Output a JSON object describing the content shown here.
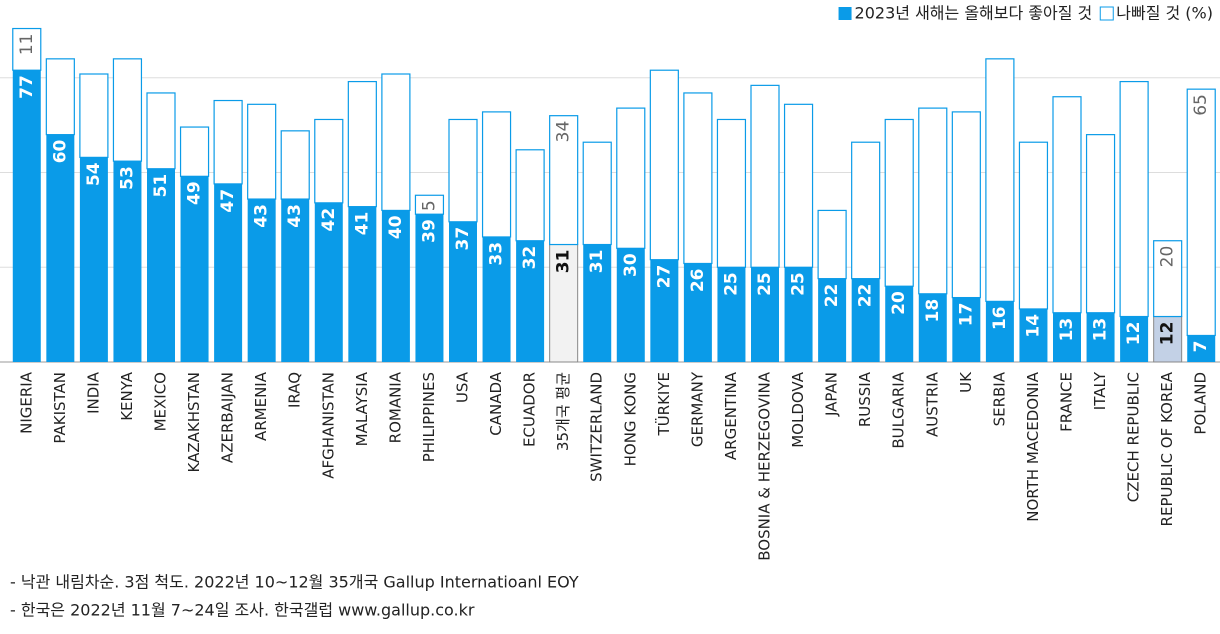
{
  "chart_data": {
    "type": "stacked_bar",
    "categories": [
      "NIGERIA",
      "PAKISTAN",
      "INDIA",
      "KENYA",
      "MEXICO",
      "KAZAKHSTAN",
      "AZERBAIJAN",
      "ARMENIA",
      "IRAQ",
      "AFGHANISTAN",
      "MALAYSIA",
      "ROMANIA",
      "PHILIPPINES",
      "USA",
      "CANADA",
      "ECUADOR",
      "35개국 평균",
      "SWITZERLAND",
      "HONG KONG",
      "TÜRKIYE",
      "GERMANY",
      "ARGENTINA",
      "BOSNIA & HERZEGOVINA",
      "MOLDOVA",
      "JAPAN",
      "RUSSIA",
      "BULGARIA",
      "AUSTRIA",
      "UK",
      "SERBIA",
      "NORTH MACEDONIA",
      "FRANCE",
      "ITALY",
      "CZECH REPUBLIC",
      "REPUBLIC OF KOREA",
      "POLAND"
    ],
    "series": [
      {
        "name": "2023년 새해는 올해보다 좋아질 것",
        "color": "#0a9be8",
        "colors": [
          "#0a9be8",
          "#0a9be8",
          "#0a9be8",
          "#0a9be8",
          "#0a9be8",
          "#0a9be8",
          "#0a9be8",
          "#0a9be8",
          "#0a9be8",
          "#0a9be8",
          "#0a9be8",
          "#0a9be8",
          "#0a9be8",
          "#0a9be8",
          "#0a9be8",
          "#0a9be8",
          "#f2f2f2",
          "#0a9be8",
          "#0a9be8",
          "#0a9be8",
          "#0a9be8",
          "#0a9be8",
          "#0a9be8",
          "#0a9be8",
          "#0a9be8",
          "#0a9be8",
          "#0a9be8",
          "#0a9be8",
          "#0a9be8",
          "#0a9be8",
          "#0a9be8",
          "#0a9be8",
          "#0a9be8",
          "#0a9be8",
          "#c3d1e6",
          "#0a9be8"
        ],
        "values": [
          77,
          60,
          54,
          53,
          51,
          49,
          47,
          43,
          43,
          42,
          41,
          40,
          39,
          37,
          33,
          32,
          31,
          31,
          30,
          27,
          26,
          25,
          25,
          25,
          22,
          22,
          20,
          18,
          17,
          16,
          14,
          13,
          13,
          12,
          12,
          7
        ]
      },
      {
        "name": "나빠질 것 (%)",
        "color": "#ffffff",
        "values": [
          11,
          20,
          22,
          27,
          20,
          13,
          22,
          25,
          18,
          22,
          33,
          36,
          5,
          27,
          33,
          24,
          34,
          27,
          37,
          50,
          45,
          39,
          48,
          43,
          18,
          36,
          44,
          49,
          49,
          64,
          44,
          57,
          47,
          62,
          20,
          65
        ],
        "value_labels": [
          "11",
          null,
          null,
          null,
          null,
          null,
          null,
          null,
          null,
          null,
          null,
          null,
          "5",
          null,
          null,
          null,
          "34",
          null,
          null,
          null,
          null,
          null,
          null,
          null,
          null,
          null,
          null,
          null,
          null,
          null,
          null,
          null,
          null,
          null,
          "20",
          "65"
        ]
      }
    ],
    "ylim": [
      0,
      95
    ],
    "yticks": [
      0,
      25,
      50,
      75
    ],
    "grid": true,
    "legend": "top-right",
    "notes": [
      "- 낙관 내림차순. 3점 척도. 2022년 10~12월 35개국 Gallup Internatioanl EOY",
      "- 한국은 2022년 11월 7~24일 조사. 한국갤럽 www.gallup.co.kr"
    ]
  }
}
